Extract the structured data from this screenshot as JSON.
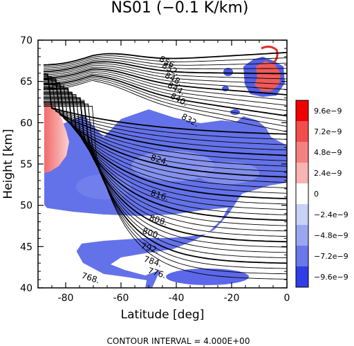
{
  "chart_data": {
    "type": "heatmap",
    "title": "NS01 (−0.1 K/km)",
    "xlabel": "Latitude [deg]",
    "ylabel": "Height [km]",
    "xlim": [
      -90,
      0
    ],
    "ylim": [
      40,
      70
    ],
    "x_ticks": [
      -80,
      -60,
      -40,
      -20,
      0
    ],
    "y_ticks": [
      40,
      45,
      50,
      55,
      60,
      65,
      70
    ],
    "footer": "CONTOUR INTERVAL = 4.000E+00",
    "colorbar": {
      "labels": [
        "9.6e−9",
        "7.2e−9",
        "4.8e−9",
        "2.4e−9",
        "0",
        "−2.4e−9",
        "−4.8e−9",
        "−7.2e−9",
        "−9.6e−9"
      ],
      "colors": [
        "#f00000",
        "#f24d4d",
        "#f58080",
        "#f9b3b3",
        "#ffffff",
        "#c8d2f6",
        "#9aa7f0",
        "#6a78ea",
        "#2f3ee5"
      ]
    },
    "contour_labels": [
      {
        "text": "856.",
        "lat": -43,
        "h": 67.3
      },
      {
        "text": "852.",
        "lat": -42,
        "h": 66.5
      },
      {
        "text": "848.",
        "lat": -41,
        "h": 65.3
      },
      {
        "text": "844.",
        "lat": -40,
        "h": 64.1
      },
      {
        "text": "840.",
        "lat": -39,
        "h": 62.8
      },
      {
        "text": "832.",
        "lat": -35,
        "h": 60.3
      },
      {
        "text": "824.",
        "lat": -46,
        "h": 55.5
      },
      {
        "text": "816.",
        "lat": -46,
        "h": 51.2
      },
      {
        "text": "808.",
        "lat": -46.5,
        "h": 48.2
      },
      {
        "text": "800.",
        "lat": -49,
        "h": 46.6
      },
      {
        "text": "792.",
        "lat": -49.5,
        "h": 44.8
      },
      {
        "text": "784.",
        "lat": -48.5,
        "h": 43.2
      },
      {
        "text": "776.",
        "lat": -47,
        "h": 41.8
      },
      {
        "text": "768.",
        "lat": -71,
        "h": 41.2
      }
    ]
  }
}
